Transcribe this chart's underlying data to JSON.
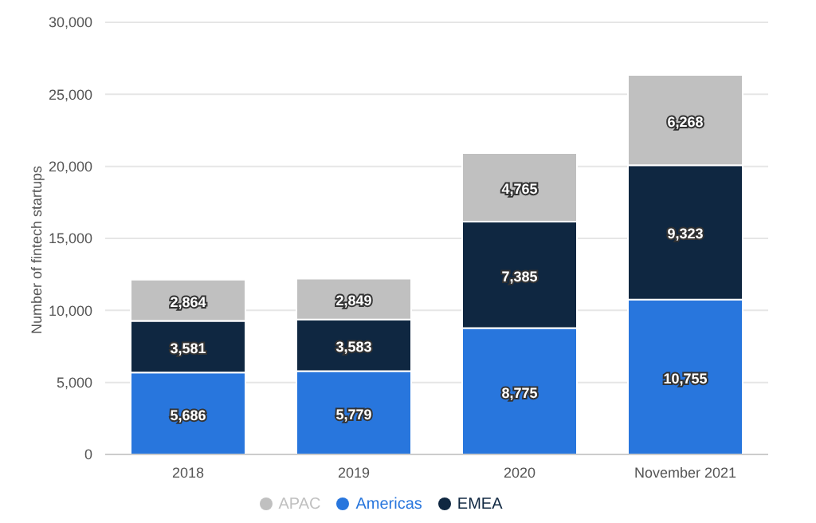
{
  "chart_data": {
    "type": "bar",
    "stacked": true,
    "categories": [
      "2018",
      "2019",
      "2020",
      "November 2021"
    ],
    "ylabel": "Number of fintech startups",
    "series": [
      {
        "name": "Americas",
        "color": "#2876dd",
        "values": [
          5686,
          5779,
          8775,
          10755
        ],
        "value_labels": [
          "5,686",
          "5,779",
          "8,775",
          "10,755"
        ]
      },
      {
        "name": "EMEA",
        "color": "#0f2741",
        "values": [
          3581,
          3583,
          7385,
          9323
        ],
        "value_labels": [
          "3,581",
          "3,583",
          "7,385",
          "9,323"
        ]
      },
      {
        "name": "APAC",
        "color": "#c0c0c0",
        "values": [
          2864,
          2849,
          4765,
          6268
        ],
        "value_labels": [
          "2,864",
          "2,849",
          "4,765",
          "6,268"
        ]
      }
    ],
    "ylim": [
      0,
      30000
    ],
    "yticks": [
      {
        "value": 0,
        "label": "0"
      },
      {
        "value": 5000,
        "label": "5,000"
      },
      {
        "value": 10000,
        "label": "10,000"
      },
      {
        "value": 15000,
        "label": "15,000"
      },
      {
        "value": 20000,
        "label": "20,000"
      },
      {
        "value": 25000,
        "label": "25,000"
      },
      {
        "value": 30000,
        "label": "30,000"
      }
    ],
    "grid": "y",
    "legend": "bottom"
  }
}
